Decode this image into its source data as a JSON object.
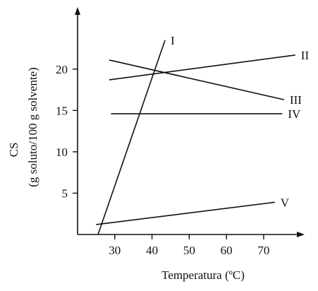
{
  "chart_data": {
    "type": "line",
    "xlabel": "Temperatura (ºC)",
    "ylabel_line1": "CS",
    "ylabel_line2": "(g soluto/100 g solvente)",
    "xlim": [
      20,
      81
    ],
    "ylim": [
      0,
      27.5
    ],
    "x_ticks": [
      30,
      40,
      50,
      60,
      70
    ],
    "y_ticks": [
      5,
      10,
      15,
      20
    ],
    "grid": false,
    "series": [
      {
        "name": "I",
        "x": [
          25.5,
          43.5
        ],
        "y": [
          0,
          23.5
        ],
        "label_at": "end"
      },
      {
        "name": "II",
        "x": [
          28.5,
          78.5
        ],
        "y": [
          18.7,
          21.7
        ],
        "label_at": "end"
      },
      {
        "name": "III",
        "x": [
          28.5,
          75.5
        ],
        "y": [
          21.1,
          16.3
        ],
        "label_at": "end"
      },
      {
        "name": "IV",
        "x": [
          29,
          75
        ],
        "y": [
          14.6,
          14.6
        ],
        "label_at": "end"
      },
      {
        "name": "V",
        "x": [
          25,
          73
        ],
        "y": [
          1.2,
          3.9
        ],
        "label_at": "end"
      }
    ]
  }
}
